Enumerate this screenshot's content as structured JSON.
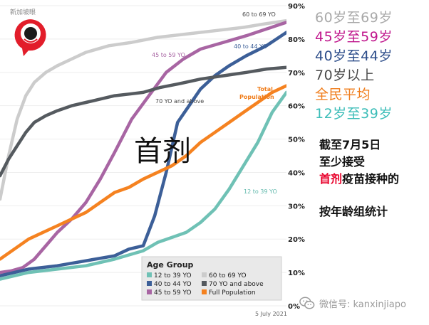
{
  "logo": {
    "brand_text": "新加坡眼"
  },
  "chart_title_overlay": "首剂",
  "right_legend": [
    {
      "label": "60岁至69岁",
      "color": "#a9a9a9"
    },
    {
      "label": "45岁至59岁",
      "color": "#c0168c"
    },
    {
      "label": "40岁至44岁",
      "color": "#2d4d8a"
    },
    {
      "label": "70岁以上",
      "color": "#4a4a4a"
    },
    {
      "label": "全民平均",
      "color": "#f07d1b"
    },
    {
      "label": "12岁至39岁",
      "color": "#3cbdb8"
    }
  ],
  "caption": {
    "line1": "截至7月5日",
    "line2": "至少接受",
    "line3_red": "首剂",
    "line3_rest": "疫苗接种的",
    "line4": "按年龄组统计"
  },
  "watermark": "微信号: kanxinjiapo",
  "chart_data": {
    "type": "line",
    "x_label": "5 July 2021",
    "y_tick_labels": [
      "0%",
      "10%",
      "20%",
      "30%",
      "40%",
      "50%",
      "60%",
      "70%",
      "80%",
      "90%"
    ],
    "y_ticks": [
      0,
      10,
      20,
      30,
      40,
      50,
      60,
      70,
      80,
      90
    ],
    "ylim": [
      0,
      90
    ],
    "xlim": [
      0,
      100
    ],
    "legend": {
      "title": "Age Group",
      "placement": "bottom-right",
      "items": [
        "12 to 39 YO",
        "60 to 69 YO",
        "40 to 44 YO",
        "70 YO and above",
        "45 to 59 YO",
        "Full Population"
      ]
    },
    "series": [
      {
        "name": "60 to 69 YO",
        "color": "#cccccc",
        "label_text": "60 to 69 YO",
        "x": [
          0,
          3,
          6,
          9,
          12,
          16,
          20,
          25,
          30,
          38,
          46,
          55,
          65,
          75,
          85,
          92,
          100
        ],
        "y": [
          32,
          45,
          56,
          63,
          67,
          70,
          72,
          74,
          76,
          78,
          79,
          80.5,
          81.5,
          82.5,
          83.5,
          84.5,
          85.5
        ]
      },
      {
        "name": "45 to 59 YO",
        "color": "#a865a3",
        "label_text": "45 to 59 YO",
        "x": [
          0,
          4,
          8,
          12,
          16,
          20,
          25,
          30,
          35,
          40,
          46,
          52,
          58,
          64,
          70,
          78,
          86,
          93,
          100
        ],
        "y": [
          10,
          10.5,
          11.5,
          14,
          18,
          22,
          26,
          31,
          38,
          46,
          56,
          63,
          70,
          74,
          77,
          79,
          81,
          83,
          85
        ]
      },
      {
        "name": "40 to 44 YO",
        "color": "#3c5f98",
        "label_text": "40 to 44 YO",
        "x": [
          0,
          10,
          20,
          30,
          40,
          45,
          50,
          54,
          58,
          62,
          66,
          70,
          75,
          80,
          86,
          93,
          100
        ],
        "y": [
          9,
          11,
          12,
          13.5,
          15,
          17,
          18,
          27,
          40,
          55,
          60,
          65,
          69,
          72,
          75,
          78,
          82
        ]
      },
      {
        "name": "70 YO and above",
        "color": "#555a5f",
        "label_text": "70 YO and above",
        "x": [
          0,
          3,
          6,
          9,
          12,
          16,
          20,
          25,
          30,
          35,
          40,
          45,
          50,
          56,
          62,
          70,
          78,
          86,
          93,
          100
        ],
        "y": [
          39,
          44,
          48,
          52,
          55,
          57,
          58.5,
          60,
          61,
          62,
          63,
          63.5,
          64,
          65.5,
          66.5,
          68,
          69,
          70,
          71,
          71.5
        ]
      },
      {
        "name": "Full Population",
        "color": "#f58220",
        "label_text": "Total Population",
        "x": [
          0,
          5,
          10,
          15,
          20,
          25,
          30,
          35,
          40,
          45,
          50,
          55,
          60,
          65,
          70,
          75,
          80,
          85,
          90,
          95,
          100
        ],
        "y": [
          14,
          17,
          20,
          22,
          24,
          26,
          28,
          31,
          34,
          35.5,
          38,
          40,
          42,
          45,
          49,
          52,
          55,
          58,
          61,
          64,
          66
        ]
      },
      {
        "name": "12 to 39 YO",
        "color": "#6fc1b5",
        "label_text": "12 to 39 YO",
        "x": [
          0,
          10,
          20,
          30,
          40,
          50,
          55,
          60,
          65,
          70,
          75,
          80,
          85,
          90,
          95,
          100
        ],
        "y": [
          8,
          10,
          11,
          12,
          14,
          16.5,
          19,
          20.5,
          22,
          25,
          29,
          35,
          42,
          49,
          58,
          64
        ]
      }
    ]
  }
}
